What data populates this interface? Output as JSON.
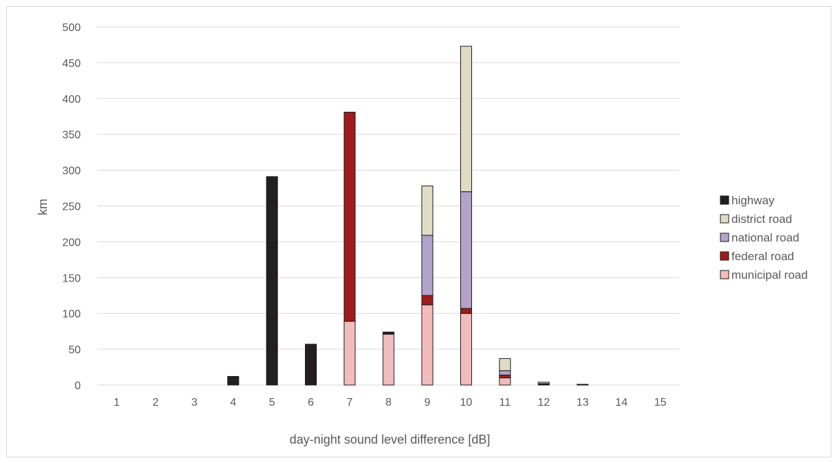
{
  "chart_data": {
    "type": "bar",
    "stacked": true,
    "title": "",
    "xlabel": "day-night sound level difference [dB]",
    "ylabel": "km",
    "ylim": [
      0,
      500
    ],
    "yticks": [
      0,
      50,
      100,
      150,
      200,
      250,
      300,
      350,
      400,
      450,
      500
    ],
    "grid": "horizontal",
    "legend_position": "right",
    "categories": [
      "1",
      "2",
      "3",
      "4",
      "5",
      "6",
      "7",
      "8",
      "9",
      "10",
      "11",
      "12",
      "13",
      "14",
      "15"
    ],
    "series": [
      {
        "name": "municipal road",
        "color": "#f2bcbc",
        "values": [
          0,
          0,
          0,
          0,
          0,
          0,
          89,
          71,
          112,
          100,
          10,
          1,
          0.5,
          0,
          0
        ]
      },
      {
        "name": "federal road",
        "color": "#a01c1c",
        "values": [
          0,
          0,
          0,
          0,
          0,
          0,
          292,
          0,
          13,
          7,
          4,
          0,
          0,
          0,
          0
        ]
      },
      {
        "name": "national road",
        "color": "#b3a2c9",
        "values": [
          0,
          0,
          0,
          0,
          0,
          0,
          0,
          0,
          84,
          163,
          6,
          1,
          0,
          0,
          0
        ]
      },
      {
        "name": "district road",
        "color": "#e0dcc4",
        "values": [
          0,
          0,
          0,
          0,
          0,
          0,
          0,
          0,
          69,
          203,
          17,
          2,
          0.5,
          0,
          0
        ]
      },
      {
        "name": "highway",
        "color": "#231f20",
        "values": [
          0,
          0,
          0,
          12,
          291,
          57,
          0,
          3,
          0,
          0,
          0,
          0,
          0,
          0,
          0
        ]
      }
    ],
    "legend_order": [
      "highway",
      "district road",
      "national road",
      "federal road",
      "municipal road"
    ]
  }
}
